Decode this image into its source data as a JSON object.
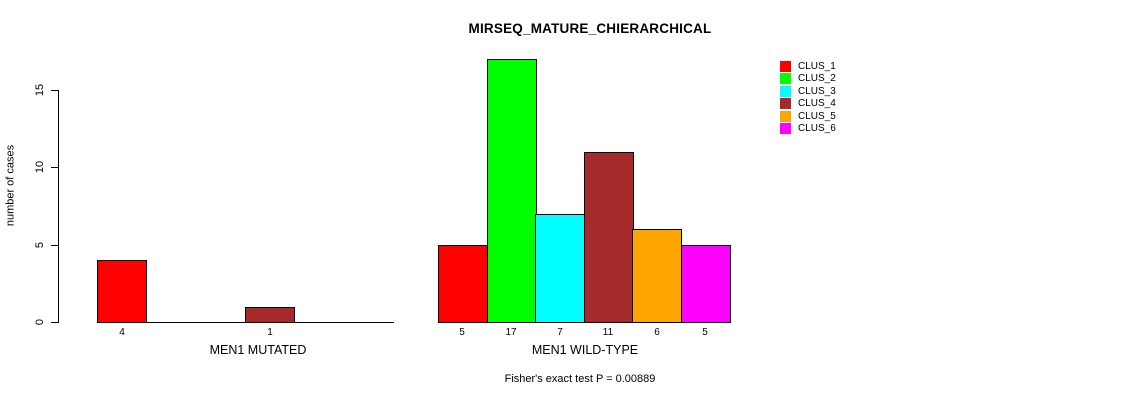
{
  "chart_data": {
    "type": "bar",
    "title": "MIRSEQ_MATURE_CHIERARCHICAL",
    "ylabel": "number of cases",
    "ylim": [
      0,
      17
    ],
    "yticks": [
      0,
      5,
      10,
      15
    ],
    "grid": false,
    "legend_position": "right",
    "series_names": [
      "CLUS_1",
      "CLUS_2",
      "CLUS_3",
      "CLUS_4",
      "CLUS_5",
      "CLUS_6"
    ],
    "series_colors": [
      "#ff0000",
      "#00ff00",
      "#00ffff",
      "#a52a2a",
      "#ffa500",
      "#ff00ff"
    ],
    "groups": [
      {
        "label": "MEN1 MUTATED",
        "values": [
          4,
          0,
          0,
          1,
          0,
          0
        ],
        "bar_labels": [
          "4",
          "",
          "",
          "1",
          "",
          ""
        ]
      },
      {
        "label": "MEN1 WILD-TYPE",
        "values": [
          5,
          17,
          7,
          11,
          6,
          5
        ],
        "bar_labels": [
          "5",
          "17",
          "7",
          "11",
          "6",
          "5"
        ]
      }
    ],
    "annotation": "Fisher's exact test P = 0.00889",
    "axis_color": "#000000",
    "background_color": "#ffffff"
  }
}
